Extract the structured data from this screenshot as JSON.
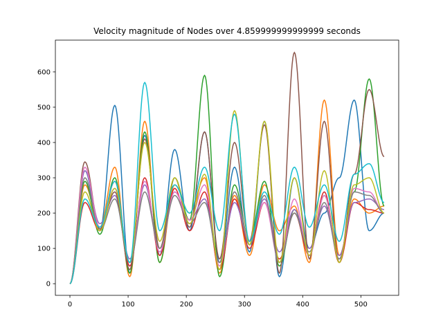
{
  "chart_data": {
    "type": "line",
    "title": "Velocity magnitude of Nodes over 4.859999999999999 seconds",
    "xlabel": "",
    "ylabel": "",
    "xlim": [
      -25,
      565
    ],
    "ylim": [
      -33,
      690
    ],
    "xticks": [
      0,
      100,
      200,
      300,
      400,
      500
    ],
    "yticks": [
      0,
      100,
      200,
      300,
      400,
      500,
      600
    ],
    "grid": false,
    "legend": "none",
    "x_range": [
      0,
      540
    ],
    "series_colors": [
      "#1f77b4",
      "#ff7f0e",
      "#2ca02c",
      "#d62728",
      "#9467bd",
      "#8c564b",
      "#e377c2",
      "#7f7f7f",
      "#bcbd22",
      "#17becf"
    ],
    "series": [
      {
        "color": "#1f77b4",
        "values": [
          0,
          320,
          150,
          505,
          30,
          420,
          80,
          380,
          150,
          430,
          60,
          330,
          90,
          460,
          20,
          300,
          100,
          200,
          300,
          520,
          150,
          200
        ]
      },
      {
        "color": "#ff7f0e",
        "values": [
          0,
          280,
          160,
          330,
          20,
          460,
          60,
          280,
          200,
          300,
          30,
          250,
          80,
          280,
          150,
          220,
          60,
          520,
          80,
          240,
          200,
          220
        ]
      },
      {
        "color": "#2ca02c",
        "values": [
          0,
          290,
          140,
          300,
          30,
          430,
          60,
          300,
          180,
          590,
          20,
          280,
          120,
          290,
          50,
          210,
          80,
          250,
          70,
          260,
          580,
          220
        ]
      },
      {
        "color": "#d62728",
        "values": [
          0,
          230,
          150,
          290,
          50,
          300,
          80,
          270,
          150,
          260,
          40,
          240,
          100,
          230,
          70,
          200,
          80,
          260,
          60,
          230,
          210,
          200
        ]
      },
      {
        "color": "#9467bd",
        "values": [
          0,
          320,
          170,
          250,
          70,
          280,
          100,
          260,
          180,
          240,
          60,
          230,
          120,
          240,
          90,
          210,
          100,
          220,
          80,
          230,
          240,
          210
        ]
      },
      {
        "color": "#8c564b",
        "values": [
          0,
          345,
          155,
          260,
          40,
          410,
          100,
          300,
          160,
          430,
          70,
          400,
          120,
          450,
          30,
          655,
          70,
          460,
          60,
          310,
          550,
          360
        ]
      },
      {
        "color": "#e377c2",
        "values": [
          0,
          330,
          160,
          270,
          60,
          290,
          90,
          260,
          180,
          280,
          50,
          260,
          120,
          230,
          60,
          240,
          80,
          250,
          70,
          270,
          260,
          200
        ]
      },
      {
        "color": "#7f7f7f",
        "values": [
          0,
          300,
          150,
          240,
          60,
          260,
          100,
          250,
          170,
          230,
          60,
          260,
          110,
          250,
          60,
          200,
          90,
          230,
          70,
          260,
          250,
          200
        ]
      },
      {
        "color": "#bcbd22",
        "values": [
          0,
          260,
          150,
          270,
          60,
          400,
          120,
          300,
          170,
          310,
          40,
          490,
          110,
          460,
          60,
          300,
          80,
          320,
          60,
          280,
          300,
          200
        ]
      },
      {
        "color": "#17becf",
        "values": [
          0,
          240,
          160,
          290,
          60,
          570,
          150,
          280,
          200,
          330,
          150,
          480,
          120,
          260,
          140,
          330,
          160,
          280,
          120,
          310,
          340,
          230
        ]
      }
    ]
  }
}
